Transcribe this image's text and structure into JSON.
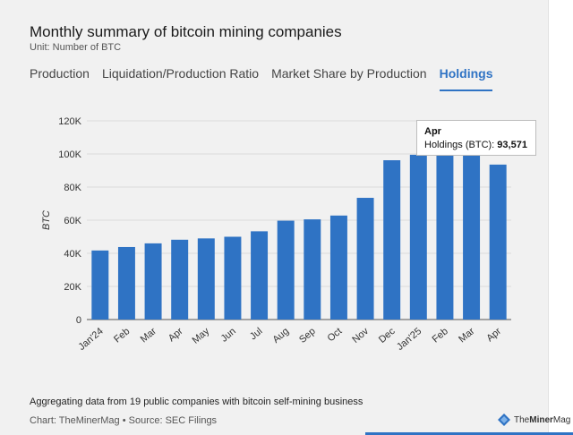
{
  "header": {
    "title": "Monthly summary of bitcoin mining companies",
    "subtitle": "Unit: Number of BTC"
  },
  "tabs": [
    {
      "label": "Production",
      "active": false
    },
    {
      "label": "Liquidation/Production Ratio",
      "active": false
    },
    {
      "label": "Market Share by Production",
      "active": false
    },
    {
      "label": "Holdings",
      "active": true
    }
  ],
  "tooltip": {
    "title": "Apr",
    "label": "Holdings (BTC): ",
    "value": "93,571"
  },
  "footer": {
    "note": "Aggregating data from 19 public companies with bitcoin self-mining business",
    "credit": "Chart: TheMinerMag • Source: SEC Filings",
    "logo_prefix": "The",
    "logo_bold": "Miner",
    "logo_suffix": "Mag"
  },
  "colors": {
    "bar": "#2f73c4",
    "accent": "#2f73c4",
    "background": "#f1f1f1"
  },
  "chart_data": {
    "type": "bar",
    "categories": [
      "Jan'24",
      "Feb",
      "Mar",
      "Apr",
      "May",
      "Jun",
      "Jul",
      "Aug",
      "Sep",
      "Oct",
      "Nov",
      "Dec",
      "Jan'25",
      "Feb",
      "Mar",
      "Apr"
    ],
    "values": [
      41700,
      43800,
      46000,
      48200,
      49000,
      50000,
      53300,
      59700,
      60500,
      62800,
      73500,
      96200,
      99500,
      101500,
      99000,
      93571
    ],
    "ylabel": "BTC",
    "xlabel": "",
    "ylim": [
      0,
      120000
    ],
    "yticks": [
      0,
      20000,
      40000,
      60000,
      80000,
      100000,
      120000
    ],
    "ytick_labels": [
      "0",
      "20K",
      "40K",
      "60K",
      "80K",
      "100K",
      "120K"
    ],
    "grid": true
  }
}
